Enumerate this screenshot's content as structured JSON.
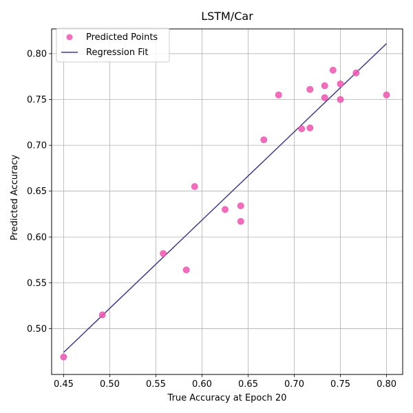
{
  "chart_data": {
    "type": "scatter",
    "title": "LSTM/Car",
    "xlabel": "True Accuracy at Epoch 20",
    "ylabel": "Predicted Accuracy",
    "xlim": [
      0.437,
      0.8175
    ],
    "ylim": [
      0.45,
      0.827
    ],
    "xticks": [
      0.45,
      0.5,
      0.55,
      0.6,
      0.65,
      0.7,
      0.75,
      0.8
    ],
    "xtick_labels": [
      "0.45",
      "0.50",
      "0.55",
      "0.60",
      "0.65",
      "0.70",
      "0.75",
      "0.80"
    ],
    "yticks": [
      0.5,
      0.55,
      0.6,
      0.65,
      0.7,
      0.75,
      0.8
    ],
    "ytick_labels": [
      "0.50",
      "0.55",
      "0.60",
      "0.65",
      "0.70",
      "0.75",
      "0.80"
    ],
    "grid": true,
    "legend_position": "top-left",
    "colors": {
      "points": "#f055b0",
      "line": "#3f3a8a"
    },
    "series": [
      {
        "name": "Predicted Points",
        "kind": "scatter",
        "points": [
          [
            0.45,
            0.469
          ],
          [
            0.492,
            0.515
          ],
          [
            0.558,
            0.582
          ],
          [
            0.583,
            0.564
          ],
          [
            0.592,
            0.655
          ],
          [
            0.625,
            0.63
          ],
          [
            0.642,
            0.634
          ],
          [
            0.642,
            0.617
          ],
          [
            0.667,
            0.706
          ],
          [
            0.683,
            0.755
          ],
          [
            0.708,
            0.718
          ],
          [
            0.717,
            0.719
          ],
          [
            0.717,
            0.761
          ],
          [
            0.733,
            0.765
          ],
          [
            0.733,
            0.752
          ],
          [
            0.742,
            0.782
          ],
          [
            0.75,
            0.767
          ],
          [
            0.75,
            0.75
          ],
          [
            0.767,
            0.779
          ],
          [
            0.8,
            0.755
          ]
        ]
      },
      {
        "name": "Regression Fit",
        "kind": "line",
        "points": [
          [
            0.45,
            0.474
          ],
          [
            0.8,
            0.811
          ]
        ]
      }
    ]
  }
}
